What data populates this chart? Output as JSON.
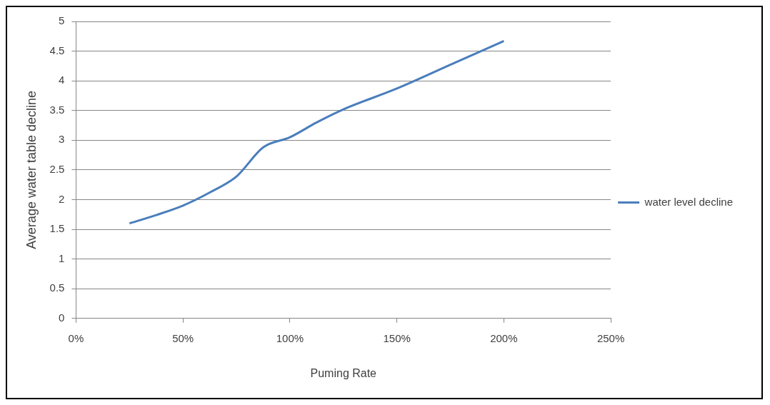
{
  "chart_data": {
    "type": "line",
    "xlabel": "Puming Rate",
    "ylabel": "Average water table decline",
    "x": [
      25,
      37.5,
      50,
      62.5,
      75,
      87.5,
      100,
      112.5,
      125,
      150,
      175,
      200
    ],
    "series": [
      {
        "name": "water level decline",
        "color": "#4a7ebb",
        "values": [
          1.6,
          1.74,
          1.9,
          2.12,
          2.39,
          2.88,
          3.05,
          3.3,
          3.52,
          3.87,
          4.27,
          4.67
        ]
      }
    ],
    "xlim": [
      0,
      250
    ],
    "xticks": [
      {
        "value": 0,
        "label": "0%"
      },
      {
        "value": 50,
        "label": "50%"
      },
      {
        "value": 100,
        "label": "100%"
      },
      {
        "value": 150,
        "label": "150%"
      },
      {
        "value": 200,
        "label": "200%"
      },
      {
        "value": 250,
        "label": "250%"
      }
    ],
    "ylim": [
      0,
      5
    ],
    "yticks": [
      0,
      0.5,
      1,
      1.5,
      2,
      2.5,
      3,
      3.5,
      4,
      4.5,
      5
    ],
    "grid": "y",
    "legend": "right",
    "marker": "none",
    "line_style": "solid"
  }
}
